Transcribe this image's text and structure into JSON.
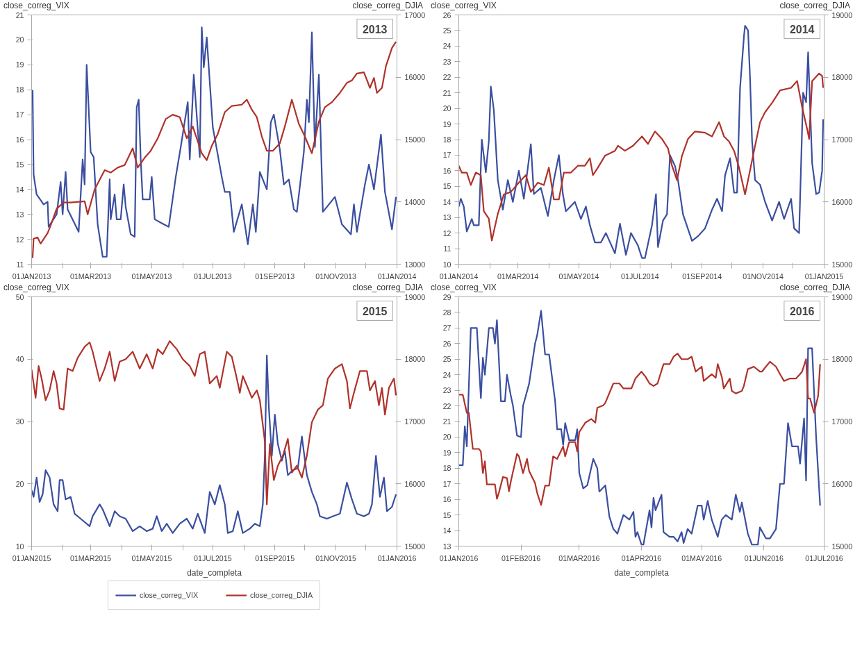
{
  "chart_data": [
    {
      "type": "line",
      "title": "2013",
      "ylabel": "close_correg_VIX",
      "y2label": "close_correg_DJIA",
      "grid": false,
      "xlim": [
        "2013-01-01",
        "2014-01-01"
      ],
      "xticks": [
        {
          "value": "2013-01-01",
          "label": "01JAN2013"
        },
        {
          "value": "2013-02-01",
          "label": null
        },
        {
          "value": "2013-03-01",
          "label": "01MAR2013"
        },
        {
          "value": "2013-04-01",
          "label": null
        },
        {
          "value": "2013-05-01",
          "label": "01MAY2013"
        },
        {
          "value": "2013-06-01",
          "label": null
        },
        {
          "value": "2013-07-01",
          "label": "01JUL2013"
        },
        {
          "value": "2013-08-01",
          "label": null
        },
        {
          "value": "2013-09-01",
          "label": "01SEP2013"
        },
        {
          "value": "2013-10-01",
          "label": null
        },
        {
          "value": "2013-11-01",
          "label": "01NOV2013"
        },
        {
          "value": "2013-12-01",
          "label": null
        },
        {
          "value": "2014-01-01",
          "label": "01JAN2014"
        }
      ],
      "ylim": [
        11,
        21
      ],
      "yticks": [
        11,
        12,
        13,
        14,
        15,
        16,
        17,
        18,
        19,
        20,
        21
      ],
      "y2lim": [
        13000,
        17000
      ],
      "y2ticks": [
        13000,
        14000,
        15000,
        16000,
        17000
      ],
      "series": [
        {
          "color": "#3b4fa0",
          "x": [
            "2013-01-02",
            "2013-01-03",
            "2013-01-06",
            "2013-01-13",
            "2013-01-17",
            "2013-01-18",
            "2013-01-26",
            "2013-01-30",
            "2013-02-01",
            "2013-02-04",
            "2013-02-06",
            "2013-02-17",
            "2013-02-21",
            "2013-02-23",
            "2013-02-25",
            "2013-03-01",
            "2013-03-04",
            "2013-03-08",
            "2013-03-13",
            "2013-03-17",
            "2013-03-20",
            "2013-03-21",
            "2013-03-25",
            "2013-03-27",
            "2013-03-31",
            "2013-04-03",
            "2013-04-05",
            "2013-04-10",
            "2013-04-14",
            "2013-04-16",
            "2013-04-18",
            "2013-04-20",
            "2013-04-22",
            "2013-04-29",
            "2013-05-01",
            "2013-05-04",
            "2013-05-13",
            "2013-05-18",
            "2013-05-25",
            "2013-05-30",
            "2013-06-06",
            "2013-06-08",
            "2013-06-12",
            "2013-06-18",
            "2013-06-20",
            "2013-06-22",
            "2013-06-25",
            "2013-07-01",
            "2013-07-10",
            "2013-07-13",
            "2013-07-18",
            "2013-07-22",
            "2013-07-30",
            "2013-08-05",
            "2013-08-10",
            "2013-08-13",
            "2013-08-17",
            "2013-08-24",
            "2013-08-28",
            "2013-08-31",
            "2013-09-06",
            "2013-09-10",
            "2013-09-15",
            "2013-09-20",
            "2013-09-23",
            "2013-09-30",
            "2013-10-03",
            "2013-10-05",
            "2013-10-08",
            "2013-10-11",
            "2013-10-15",
            "2013-10-19",
            "2013-10-31",
            "2013-11-07",
            "2013-11-16",
            "2013-11-19",
            "2013-11-22",
            "2013-11-30",
            "2013-12-04",
            "2013-12-09",
            "2013-12-16",
            "2013-12-20",
            "2013-12-27",
            "2013-12-31"
          ],
          "values": [
            18.0,
            14.6,
            13.8,
            13.4,
            13.5,
            12.5,
            13.0,
            14.3,
            13.0,
            14.7,
            13.2,
            12.3,
            15.2,
            14.2,
            19.0,
            15.5,
            15.3,
            12.6,
            11.3,
            11.3,
            14.4,
            12.8,
            13.8,
            12.8,
            12.8,
            14.2,
            13.3,
            12.2,
            12.1,
            17.3,
            17.6,
            15.2,
            13.6,
            13.6,
            14.5,
            12.8,
            12.6,
            12.5,
            14.5,
            15.7,
            17.5,
            15.2,
            18.6,
            15.3,
            20.5,
            18.9,
            20.1,
            16.5,
            14.5,
            13.9,
            13.9,
            12.3,
            13.4,
            11.8,
            13.4,
            12.3,
            14.7,
            14.0,
            16.7,
            17.0,
            15.6,
            14.2,
            14.4,
            13.2,
            13.1,
            15.5,
            17.6,
            16.7,
            20.3,
            15.7,
            18.6,
            13.1,
            13.7,
            12.6,
            12.2,
            13.4,
            12.3,
            14.2,
            15.0,
            14.0,
            16.2,
            13.9,
            12.4,
            13.7
          ]
        },
        {
          "color": "#b0322a",
          "axis": "y2",
          "x": [
            "2013-01-02",
            "2013-01-03",
            "2013-01-07",
            "2013-01-10",
            "2013-01-17",
            "2013-01-20",
            "2013-01-26",
            "2013-02-02",
            "2013-02-09",
            "2013-02-23",
            "2013-02-26",
            "2013-03-05",
            "2013-03-15",
            "2013-03-21",
            "2013-03-28",
            "2013-04-04",
            "2013-04-12",
            "2013-04-17",
            "2013-04-24",
            "2013-04-30",
            "2013-05-07",
            "2013-05-15",
            "2013-05-22",
            "2013-05-29",
            "2013-06-05",
            "2013-06-11",
            "2013-06-20",
            "2013-06-25",
            "2013-06-30",
            "2013-07-06",
            "2013-07-13",
            "2013-07-20",
            "2013-07-30",
            "2013-08-04",
            "2013-08-09",
            "2013-08-14",
            "2013-08-19",
            "2013-08-24",
            "2013-08-30",
            "2013-09-06",
            "2013-09-11",
            "2013-09-18",
            "2013-09-25",
            "2013-10-01",
            "2013-10-08",
            "2013-10-15",
            "2013-10-21",
            "2013-10-28",
            "2013-11-05",
            "2013-11-12",
            "2013-11-17",
            "2013-11-22",
            "2013-11-29",
            "2013-12-05",
            "2013-12-09",
            "2013-12-12",
            "2013-12-17",
            "2013-12-21",
            "2013-12-27",
            "2013-12-31"
          ],
          "values": [
            13100,
            13410,
            13430,
            13330,
            13500,
            13620,
            13890,
            13990,
            13990,
            14010,
            13800,
            14200,
            14510,
            14470,
            14550,
            14590,
            14860,
            14550,
            14710,
            14820,
            15020,
            15330,
            15400,
            15360,
            15020,
            15210,
            14780,
            14670,
            14900,
            15090,
            15440,
            15540,
            15560,
            15640,
            15480,
            15360,
            15050,
            14820,
            14820,
            14940,
            15210,
            15640,
            15250,
            15050,
            14780,
            15290,
            15520,
            15600,
            15750,
            15910,
            15950,
            16060,
            16080,
            15830,
            15990,
            15750,
            15830,
            16180,
            16470,
            16570
          ]
        }
      ]
    },
    {
      "type": "line",
      "title": "2014",
      "ylabel": "close_correg_VIX",
      "y2label": "close_correg_DJIA",
      "grid": false,
      "xlim": [
        "2014-01-01",
        "2015-01-01"
      ],
      "xticks": [
        {
          "value": "2014-01-01",
          "label": "01JAN2014"
        },
        {
          "value": "2014-02-01",
          "label": null
        },
        {
          "value": "2014-03-01",
          "label": "01MAR2014"
        },
        {
          "value": "2014-04-01",
          "label": null
        },
        {
          "value": "2014-05-01",
          "label": "01MAY2014"
        },
        {
          "value": "2014-06-01",
          "label": null
        },
        {
          "value": "2014-07-01",
          "label": "01JUL2014"
        },
        {
          "value": "2014-08-01",
          "label": null
        },
        {
          "value": "2014-09-01",
          "label": "01SEP2014"
        },
        {
          "value": "2014-10-01",
          "label": null
        },
        {
          "value": "2014-11-01",
          "label": "01NOV2014"
        },
        {
          "value": "2014-12-01",
          "label": null
        },
        {
          "value": "2015-01-01",
          "label": "01JAN2015"
        }
      ],
      "ylim": [
        10,
        26
      ],
      "yticks": [
        10,
        11,
        12,
        13,
        14,
        15,
        16,
        17,
        18,
        19,
        20,
        21,
        22,
        23,
        24,
        25,
        26
      ],
      "y2lim": [
        15000,
        19000
      ],
      "y2ticks": [
        15000,
        16000,
        17000,
        18000,
        19000
      ],
      "series": [
        {
          "color": "#3b4fa0",
          "x": [
            "2014-01-01",
            "2014-01-03",
            "2014-01-06",
            "2014-01-09",
            "2014-01-14",
            "2014-01-16",
            "2014-01-21",
            "2014-01-24",
            "2014-01-28",
            "2014-01-31",
            "2014-02-02",
            "2014-02-05",
            "2014-02-09",
            "2014-02-14",
            "2014-02-19",
            "2014-02-24",
            "2014-03-02",
            "2014-03-07",
            "2014-03-14",
            "2014-03-17",
            "2014-03-24",
            "2014-03-31",
            "2014-04-06",
            "2014-04-11",
            "2014-04-15",
            "2014-04-18",
            "2014-04-27",
            "2014-05-03",
            "2014-05-08",
            "2014-05-12",
            "2014-05-17",
            "2014-05-23",
            "2014-05-28",
            "2014-06-06",
            "2014-06-11",
            "2014-06-17",
            "2014-06-22",
            "2014-06-29",
            "2014-07-03",
            "2014-07-06",
            "2014-07-13",
            "2014-07-17",
            "2014-07-19",
            "2014-07-24",
            "2014-07-28",
            "2014-07-31",
            "2014-08-05",
            "2014-08-08",
            "2014-08-13",
            "2014-08-22",
            "2014-08-28",
            "2014-09-04",
            "2014-09-11",
            "2014-09-16",
            "2014-09-21",
            "2014-09-24",
            "2014-09-29",
            "2014-10-03",
            "2014-10-06",
            "2014-10-09",
            "2014-10-13",
            "2014-10-14",
            "2014-10-17",
            "2014-10-19",
            "2014-10-21",
            "2014-10-24",
            "2014-10-29",
            "2014-11-03",
            "2014-11-10",
            "2014-11-17",
            "2014-11-22",
            "2014-11-29",
            "2014-12-02",
            "2014-12-07",
            "2014-12-11",
            "2014-12-14",
            "2014-12-16",
            "2014-12-20",
            "2014-12-24",
            "2014-12-27",
            "2014-12-30",
            "2014-12-31"
          ],
          "values": [
            13.7,
            14.2,
            13.7,
            12.1,
            12.9,
            12.5,
            12.5,
            18.0,
            15.9,
            17.9,
            21.4,
            19.9,
            15.4,
            13.5,
            15.4,
            14.0,
            16.0,
            14.2,
            17.7,
            14.5,
            14.9,
            13.1,
            15.4,
            17.0,
            14.5,
            13.4,
            14.0,
            12.9,
            13.7,
            12.5,
            11.4,
            11.4,
            12.0,
            10.7,
            12.6,
            10.6,
            12.0,
            11.2,
            10.4,
            10.4,
            12.5,
            14.5,
            11.1,
            12.8,
            13.2,
            17.0,
            16.3,
            15.4,
            13.2,
            11.5,
            11.8,
            12.3,
            13.5,
            14.2,
            13.4,
            15.7,
            16.8,
            14.6,
            14.6,
            21.3,
            24.7,
            25.3,
            25.0,
            21.9,
            17.9,
            15.4,
            15.1,
            14.0,
            12.8,
            14.0,
            12.9,
            14.2,
            12.3,
            12.0,
            21.0,
            20.4,
            23.6,
            16.5,
            14.5,
            14.6,
            16.0,
            19.3
          ]
        },
        {
          "color": "#b0322a",
          "axis": "y2",
          "x": [
            "2014-01-01",
            "2014-01-04",
            "2014-01-09",
            "2014-01-13",
            "2014-01-18",
            "2014-01-23",
            "2014-01-26",
            "2014-01-31",
            "2014-02-03",
            "2014-02-09",
            "2014-02-15",
            "2014-02-22",
            "2014-03-02",
            "2014-03-09",
            "2014-03-14",
            "2014-03-21",
            "2014-03-27",
            "2014-04-01",
            "2014-04-06",
            "2014-04-11",
            "2014-04-16",
            "2014-04-23",
            "2014-04-30",
            "2014-05-07",
            "2014-05-12",
            "2014-05-15",
            "2014-05-20",
            "2014-05-27",
            "2014-06-06",
            "2014-06-09",
            "2014-06-16",
            "2014-06-24",
            "2014-07-03",
            "2014-07-09",
            "2014-07-16",
            "2014-07-23",
            "2014-07-29",
            "2014-08-02",
            "2014-08-07",
            "2014-08-12",
            "2014-08-18",
            "2014-08-25",
            "2014-09-04",
            "2014-09-11",
            "2014-09-18",
            "2014-09-23",
            "2014-09-28",
            "2014-10-03",
            "2014-10-08",
            "2014-10-14",
            "2014-10-18",
            "2014-10-24",
            "2014-10-29",
            "2014-11-03",
            "2014-11-10",
            "2014-11-18",
            "2014-11-29",
            "2014-12-05",
            "2014-12-10",
            "2014-12-15",
            "2014-12-17",
            "2014-12-20",
            "2014-12-27",
            "2014-12-30",
            "2014-12-31"
          ],
          "values": [
            16580,
            16470,
            16470,
            16270,
            16470,
            16430,
            15850,
            15730,
            15380,
            15810,
            16120,
            16160,
            16310,
            16430,
            16160,
            16310,
            16270,
            16550,
            16040,
            16040,
            16470,
            16470,
            16580,
            16580,
            16700,
            16430,
            16550,
            16740,
            16820,
            16900,
            16820,
            16900,
            17050,
            16930,
            17130,
            17010,
            16860,
            16580,
            16350,
            16740,
            17010,
            17130,
            17110,
            17050,
            17280,
            17050,
            16970,
            16820,
            16550,
            16120,
            16430,
            16900,
            17280,
            17440,
            17590,
            17790,
            17830,
            17940,
            17520,
            17170,
            17010,
            17940,
            18060,
            18020,
            17830
          ]
        }
      ]
    },
    {
      "type": "line",
      "title": "2015",
      "ylabel": "close_correg_VIX",
      "y2label": "close_correg_DJIA",
      "xlabel": "date_completa",
      "grid": false,
      "legend": "bottom",
      "xlim": [
        "2015-01-01",
        "2016-01-01"
      ],
      "xticks": [
        {
          "value": "2015-01-01",
          "label": "01JAN2015"
        },
        {
          "value": "2015-02-01",
          "label": null
        },
        {
          "value": "2015-03-01",
          "label": "01MAR2015"
        },
        {
          "value": "2015-04-01",
          "label": null
        },
        {
          "value": "2015-05-01",
          "label": "01MAY2015"
        },
        {
          "value": "2015-06-01",
          "label": null
        },
        {
          "value": "2015-07-01",
          "label": "01JUL2015"
        },
        {
          "value": "2015-08-01",
          "label": null
        },
        {
          "value": "2015-09-01",
          "label": "01SEP2015"
        },
        {
          "value": "2015-10-01",
          "label": null
        },
        {
          "value": "2015-11-01",
          "label": "01NOV2015"
        },
        {
          "value": "2015-12-01",
          "label": null
        },
        {
          "value": "2016-01-01",
          "label": "01JAN2016"
        }
      ],
      "ylim": [
        10,
        50
      ],
      "yticks": [
        10,
        20,
        30,
        40,
        50
      ],
      "y2lim": [
        15000,
        19000
      ],
      "y2ticks": [
        15000,
        16000,
        17000,
        18000,
        19000
      ],
      "series": [
        {
          "name": "close_correg_VIX",
          "color": "#3b4fa0",
          "x": [
            "2015-01-01",
            "2015-01-03",
            "2015-01-06",
            "2015-01-09",
            "2015-01-12",
            "2015-01-15",
            "2015-01-19",
            "2015-01-23",
            "2015-01-27",
            "2015-01-29",
            "2015-02-01",
            "2015-02-04",
            "2015-02-09",
            "2015-02-13",
            "2015-02-19",
            "2015-02-28",
            "2015-03-03",
            "2015-03-10",
            "2015-03-13",
            "2015-03-20",
            "2015-03-25",
            "2015-03-30",
            "2015-04-05",
            "2015-04-12",
            "2015-04-19",
            "2015-04-26",
            "2015-05-02",
            "2015-05-06",
            "2015-05-11",
            "2015-05-16",
            "2015-05-22",
            "2015-05-29",
            "2015-06-05",
            "2015-06-11",
            "2015-06-16",
            "2015-06-23",
            "2015-06-28",
            "2015-07-03",
            "2015-07-08",
            "2015-07-13",
            "2015-07-16",
            "2015-07-21",
            "2015-07-26",
            "2015-07-31",
            "2015-08-07",
            "2015-08-12",
            "2015-08-17",
            "2015-08-20",
            "2015-08-22",
            "2015-08-24",
            "2015-08-26",
            "2015-08-29",
            "2015-09-01",
            "2015-09-04",
            "2015-09-08",
            "2015-09-11",
            "2015-09-14",
            "2015-09-19",
            "2015-09-24",
            "2015-09-28",
            "2015-10-03",
            "2015-10-08",
            "2015-10-13",
            "2015-10-16",
            "2015-10-23",
            "2015-10-29",
            "2015-11-05",
            "2015-11-12",
            "2015-11-17",
            "2015-11-22",
            "2015-11-29",
            "2015-12-04",
            "2015-12-07",
            "2015-12-11",
            "2015-12-15",
            "2015-12-19",
            "2015-12-22",
            "2015-12-27",
            "2015-12-31"
          ],
          "values": [
            19.0,
            17.9,
            21.0,
            17.1,
            18.3,
            22.2,
            21.0,
            16.7,
            15.6,
            20.6,
            20.6,
            17.5,
            17.9,
            15.2,
            14.4,
            13.2,
            14.8,
            16.7,
            15.9,
            13.2,
            15.6,
            14.8,
            14.4,
            12.4,
            13.2,
            12.4,
            12.8,
            14.8,
            12.4,
            13.6,
            12.1,
            13.6,
            14.4,
            12.8,
            15.2,
            12.1,
            18.7,
            16.7,
            19.8,
            16.7,
            12.1,
            12.4,
            15.6,
            12.1,
            12.8,
            13.6,
            13.2,
            16.7,
            24.5,
            40.6,
            32.3,
            24.5,
            31.1,
            26.4,
            23.7,
            25.3,
            21.4,
            22.2,
            22.5,
            27.6,
            21.4,
            18.7,
            16.7,
            14.8,
            14.4,
            14.8,
            15.2,
            20.2,
            17.5,
            15.2,
            14.8,
            15.2,
            16.7,
            24.5,
            17.9,
            21.0,
            15.6,
            16.3,
            18.3
          ]
        },
        {
          "name": "close_correg_DJIA",
          "color": "#b0322a",
          "axis": "y2",
          "x": [
            "2015-01-01",
            "2015-01-05",
            "2015-01-08",
            "2015-01-11",
            "2015-01-15",
            "2015-01-19",
            "2015-01-23",
            "2015-01-26",
            "2015-01-29",
            "2015-02-02",
            "2015-02-06",
            "2015-02-11",
            "2015-02-16",
            "2015-02-23",
            "2015-02-28",
            "2015-03-03",
            "2015-03-10",
            "2015-03-15",
            "2015-03-20",
            "2015-03-25",
            "2015-03-30",
            "2015-04-05",
            "2015-04-12",
            "2015-04-19",
            "2015-04-26",
            "2015-05-02",
            "2015-05-07",
            "2015-05-12",
            "2015-05-19",
            "2015-05-26",
            "2015-06-01",
            "2015-06-08",
            "2015-06-13",
            "2015-06-18",
            "2015-06-23",
            "2015-06-28",
            "2015-07-05",
            "2015-07-08",
            "2015-07-15",
            "2015-07-20",
            "2015-07-25",
            "2015-07-28",
            "2015-07-31",
            "2015-08-05",
            "2015-08-09",
            "2015-08-14",
            "2015-08-17",
            "2015-08-22",
            "2015-08-24",
            "2015-08-27",
            "2015-08-31",
            "2015-09-04",
            "2015-09-09",
            "2015-09-14",
            "2015-09-18",
            "2015-09-23",
            "2015-09-28",
            "2015-10-03",
            "2015-10-08",
            "2015-10-14",
            "2015-10-19",
            "2015-10-24",
            "2015-10-31",
            "2015-11-07",
            "2015-11-12",
            "2015-11-15",
            "2015-11-19",
            "2015-11-25",
            "2015-12-02",
            "2015-12-05",
            "2015-12-10",
            "2015-12-14",
            "2015-12-17",
            "2015-12-20",
            "2015-12-24",
            "2015-12-29",
            "2015-12-31"
          ],
          "values": [
            17830,
            17380,
            17890,
            17690,
            17340,
            17500,
            17810,
            17610,
            17210,
            17190,
            17850,
            17810,
            18020,
            18200,
            18270,
            18120,
            17650,
            17850,
            18120,
            17650,
            17960,
            18000,
            18120,
            17850,
            18080,
            17850,
            18160,
            18080,
            18290,
            18160,
            18000,
            17890,
            17730,
            18080,
            18120,
            17610,
            17730,
            17540,
            18120,
            18040,
            17690,
            17460,
            17730,
            17540,
            17380,
            17500,
            17340,
            16680,
            15670,
            16640,
            16060,
            16290,
            16450,
            16720,
            16180,
            16290,
            16100,
            16450,
            16990,
            17190,
            17260,
            17690,
            17850,
            17920,
            17650,
            17210,
            17460,
            17810,
            17810,
            17500,
            17650,
            17260,
            17540,
            17110,
            17540,
            17690,
            17420
          ]
        }
      ]
    },
    {
      "type": "line",
      "title": "2016",
      "ylabel": "close_correg_VIX",
      "y2label": "close_correg_DJIA",
      "xlabel": "date_completa",
      "grid": false,
      "xlim": [
        "2016-01-01",
        "2016-07-01"
      ],
      "xticks": [
        {
          "value": "2016-01-01",
          "label": "01JAN2016"
        },
        {
          "value": "2016-02-01",
          "label": "01FEB2016"
        },
        {
          "value": "2016-03-01",
          "label": "01MAR2016"
        },
        {
          "value": "2016-04-01",
          "label": "01APR2016"
        },
        {
          "value": "2016-05-01",
          "label": "01MAY2016"
        },
        {
          "value": "2016-06-01",
          "label": "01JUN2016"
        },
        {
          "value": "2016-07-01",
          "label": "01JUL2016"
        }
      ],
      "ylim": [
        13,
        29
      ],
      "yticks": [
        13,
        14,
        15,
        16,
        17,
        18,
        19,
        20,
        21,
        22,
        23,
        24,
        25,
        26,
        27,
        28,
        29
      ],
      "y2lim": [
        15000,
        19000
      ],
      "y2ticks": [
        15000,
        16000,
        17000,
        18000,
        19000
      ],
      "series": [
        {
          "color": "#3b4fa0",
          "x": [
            "2016-01-01",
            "2016-01-03",
            "2016-01-04",
            "2016-01-05",
            "2016-01-07",
            "2016-01-10",
            "2016-01-12",
            "2016-01-13",
            "2016-01-14",
            "2016-01-16",
            "2016-01-18",
            "2016-01-19",
            "2016-01-20",
            "2016-01-22",
            "2016-01-24",
            "2016-01-25",
            "2016-01-27",
            "2016-01-28",
            "2016-01-30",
            "2016-02-01",
            "2016-02-02",
            "2016-02-05",
            "2016-02-08",
            "2016-02-09",
            "2016-02-11",
            "2016-02-13",
            "2016-02-15",
            "2016-02-18",
            "2016-02-19",
            "2016-02-21",
            "2016-02-22",
            "2016-02-23",
            "2016-02-25",
            "2016-02-28",
            "2016-02-29",
            "2016-03-01",
            "2016-03-03",
            "2016-03-05",
            "2016-03-08",
            "2016-03-10",
            "2016-03-11",
            "2016-03-14",
            "2016-03-16",
            "2016-03-18",
            "2016-03-20",
            "2016-03-23",
            "2016-03-26",
            "2016-03-28",
            "2016-03-29",
            "2016-03-30",
            "2016-04-01",
            "2016-04-02",
            "2016-04-05",
            "2016-04-06",
            "2016-04-07",
            "2016-04-08",
            "2016-04-11",
            "2016-04-12",
            "2016-04-15",
            "2016-04-17",
            "2016-04-19",
            "2016-04-21",
            "2016-04-22",
            "2016-04-24",
            "2016-04-26",
            "2016-04-29",
            "2016-05-01",
            "2016-05-02",
            "2016-05-04",
            "2016-05-06",
            "2016-05-09",
            "2016-05-11",
            "2016-05-13",
            "2016-05-16",
            "2016-05-18",
            "2016-05-20",
            "2016-05-21",
            "2016-05-24",
            "2016-05-26",
            "2016-05-29",
            "2016-05-30",
            "2016-06-02",
            "2016-06-04",
            "2016-06-07",
            "2016-06-09",
            "2016-06-11",
            "2016-06-13",
            "2016-06-15",
            "2016-06-18",
            "2016-06-19",
            "2016-06-21",
            "2016-06-22",
            "2016-06-23",
            "2016-06-25",
            "2016-06-27",
            "2016-06-29"
          ],
          "values": [
            18.2,
            18.2,
            20.7,
            19.4,
            27.0,
            27.0,
            22.5,
            25.1,
            24.0,
            27.0,
            27.0,
            26.0,
            27.5,
            22.3,
            22.3,
            24.0,
            22.6,
            22.0,
            20.1,
            20.0,
            22.0,
            23.4,
            26.0,
            26.5,
            28.1,
            25.3,
            25.3,
            22.3,
            20.5,
            20.5,
            19.5,
            20.9,
            19.8,
            19.8,
            20.5,
            17.7,
            16.7,
            16.9,
            18.6,
            18.0,
            16.5,
            16.9,
            14.9,
            14.1,
            13.8,
            15.0,
            14.7,
            15.2,
            13.6,
            13.9,
            13.1,
            13.1,
            15.3,
            14.2,
            16.1,
            15.3,
            16.3,
            13.9,
            13.6,
            13.6,
            13.3,
            13.9,
            13.2,
            14.1,
            13.8,
            15.6,
            15.6,
            14.7,
            15.9,
            14.7,
            13.6,
            14.7,
            15.0,
            14.7,
            16.3,
            15.2,
            15.8,
            13.8,
            13.1,
            13.1,
            14.2,
            13.5,
            13.5,
            14.1,
            17.0,
            17.0,
            20.9,
            19.4,
            19.4,
            18.3,
            21.2,
            17.2,
            25.7,
            25.7,
            20.0,
            15.6
          ]
        },
        {
          "color": "#b0322a",
          "axis": "y2",
          "x": [
            "2016-01-01",
            "2016-01-03",
            "2016-01-05",
            "2016-01-06",
            "2016-01-08",
            "2016-01-11",
            "2016-01-12",
            "2016-01-13",
            "2016-01-14",
            "2016-01-15",
            "2016-01-19",
            "2016-01-20",
            "2016-01-21",
            "2016-01-23",
            "2016-01-25",
            "2016-01-26",
            "2016-01-27",
            "2016-01-30",
            "2016-01-31",
            "2016-02-02",
            "2016-02-04",
            "2016-02-05",
            "2016-02-08",
            "2016-02-09",
            "2016-02-11",
            "2016-02-13",
            "2016-02-15",
            "2016-02-17",
            "2016-02-19",
            "2016-02-22",
            "2016-02-23",
            "2016-02-25",
            "2016-02-28",
            "2016-02-29",
            "2016-03-01",
            "2016-03-04",
            "2016-03-07",
            "2016-03-09",
            "2016-03-10",
            "2016-03-13",
            "2016-03-14",
            "2016-03-18",
            "2016-03-21",
            "2016-03-23",
            "2016-03-27",
            "2016-03-29",
            "2016-04-01",
            "2016-04-03",
            "2016-04-05",
            "2016-04-07",
            "2016-04-09",
            "2016-04-12",
            "2016-04-15",
            "2016-04-17",
            "2016-04-19",
            "2016-04-21",
            "2016-04-24",
            "2016-04-26",
            "2016-04-28",
            "2016-05-01",
            "2016-05-02",
            "2016-05-06",
            "2016-05-08",
            "2016-05-09",
            "2016-05-11",
            "2016-05-12",
            "2016-05-15",
            "2016-05-16",
            "2016-05-18",
            "2016-05-21",
            "2016-05-22",
            "2016-05-24",
            "2016-05-27",
            "2016-05-30",
            "2016-05-31",
            "2016-06-02",
            "2016-06-04",
            "2016-06-07",
            "2016-06-09",
            "2016-06-11",
            "2016-06-14",
            "2016-06-17",
            "2016-06-19",
            "2016-06-20",
            "2016-06-22",
            "2016-06-23",
            "2016-06-24",
            "2016-06-26",
            "2016-06-28",
            "2016-06-29"
          ],
          "values": [
            17430,
            17430,
            17140,
            17140,
            16560,
            16560,
            16520,
            16170,
            16360,
            15990,
            15990,
            15760,
            15860,
            16110,
            16090,
            15880,
            16050,
            16480,
            16440,
            16170,
            16400,
            16210,
            16010,
            15860,
            15660,
            15970,
            15970,
            16440,
            16400,
            16600,
            16440,
            16670,
            16670,
            16520,
            16830,
            16980,
            17040,
            16980,
            17220,
            17260,
            17300,
            17610,
            17610,
            17530,
            17530,
            17690,
            17800,
            17720,
            17610,
            17570,
            17610,
            17920,
            17920,
            18040,
            18090,
            18000,
            18000,
            18040,
            17800,
            17880,
            17650,
            17760,
            17700,
            17920,
            17720,
            17530,
            17690,
            17490,
            17450,
            17490,
            17570,
            17840,
            17880,
            17800,
            17800,
            17880,
            17960,
            17880,
            17760,
            17650,
            17690,
            17690,
            17760,
            17800,
            18000,
            17370,
            17370,
            17140,
            17410,
            17920
          ]
        }
      ]
    }
  ]
}
